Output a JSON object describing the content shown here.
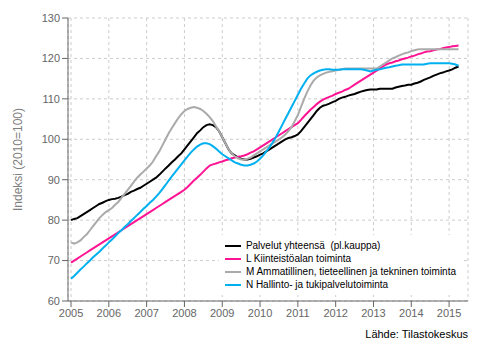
{
  "chart_data": {
    "type": "line",
    "ylabel": "Indeksi (2010=100)",
    "annotations": [
      "Lähde: Tilastokeskus"
    ],
    "grid": true,
    "legend": "lower right",
    "xlim": [
      2004.92,
      2015.5
    ],
    "xticks": [
      2005,
      2006,
      2007,
      2008,
      2009,
      2010,
      2011,
      2012,
      2013,
      2014,
      2015
    ],
    "ylim": [
      60,
      130
    ],
    "yticks": [
      60,
      70,
      80,
      90,
      100,
      110,
      120,
      130
    ],
    "x": [
      2005.0,
      2005.083,
      2005.167,
      2005.25,
      2005.333,
      2005.417,
      2005.5,
      2005.583,
      2005.667,
      2005.75,
      2005.833,
      2005.917,
      2006.0,
      2006.083,
      2006.167,
      2006.25,
      2006.333,
      2006.417,
      2006.5,
      2006.583,
      2006.667,
      2006.75,
      2006.833,
      2006.917,
      2007.0,
      2007.083,
      2007.167,
      2007.25,
      2007.333,
      2007.417,
      2007.5,
      2007.583,
      2007.667,
      2007.75,
      2007.833,
      2007.917,
      2008.0,
      2008.083,
      2008.167,
      2008.25,
      2008.333,
      2008.417,
      2008.5,
      2008.583,
      2008.667,
      2008.75,
      2008.833,
      2008.917,
      2009.0,
      2009.083,
      2009.167,
      2009.25,
      2009.333,
      2009.417,
      2009.5,
      2009.583,
      2009.667,
      2009.75,
      2009.833,
      2009.917,
      2010.0,
      2010.083,
      2010.167,
      2010.25,
      2010.333,
      2010.417,
      2010.5,
      2010.583,
      2010.667,
      2010.75,
      2010.833,
      2010.917,
      2011.0,
      2011.083,
      2011.167,
      2011.25,
      2011.333,
      2011.417,
      2011.5,
      2011.583,
      2011.667,
      2011.75,
      2011.833,
      2011.917,
      2012.0,
      2012.083,
      2012.167,
      2012.25,
      2012.333,
      2012.417,
      2012.5,
      2012.583,
      2012.667,
      2012.75,
      2012.833,
      2012.917,
      2013.0,
      2013.083,
      2013.167,
      2013.25,
      2013.333,
      2013.417,
      2013.5,
      2013.583,
      2013.667,
      2013.75,
      2013.833,
      2013.917,
      2014.0,
      2014.083,
      2014.167,
      2014.25,
      2014.333,
      2014.417,
      2014.5,
      2014.583,
      2014.667,
      2014.75,
      2014.833,
      2014.917,
      2015.0,
      2015.083,
      2015.167,
      2015.25
    ],
    "series": [
      {
        "name": "Palvelut yhteensä  (pl.kauppa)",
        "color": "#000000",
        "values": [
          80.0,
          80.3,
          80.5,
          81.0,
          81.5,
          82.0,
          82.5,
          83.0,
          83.5,
          84.0,
          84.3,
          84.7,
          85.0,
          85.2,
          85.3,
          85.5,
          85.8,
          86.2,
          86.5,
          87.0,
          87.3,
          87.7,
          88.0,
          88.5,
          89.0,
          89.5,
          90.0,
          90.5,
          91.2,
          92.0,
          92.8,
          93.5,
          94.3,
          95.0,
          95.8,
          96.5,
          97.5,
          98.5,
          99.5,
          100.5,
          101.5,
          102.2,
          103.0,
          103.5,
          103.7,
          103.5,
          103.0,
          102.0,
          100.5,
          99.0,
          97.5,
          96.5,
          96.0,
          95.5,
          95.2,
          95.0,
          95.0,
          95.2,
          95.5,
          95.8,
          96.2,
          96.5,
          97.0,
          97.5,
          98.0,
          98.5,
          99.0,
          99.5,
          100.0,
          100.3,
          100.5,
          100.8,
          101.2,
          102.0,
          103.0,
          104.0,
          105.0,
          106.0,
          107.0,
          107.8,
          108.3,
          108.5,
          108.8,
          109.2,
          109.5,
          110.0,
          110.3,
          110.5,
          110.8,
          111.0,
          111.2,
          111.5,
          111.8,
          112.0,
          112.2,
          112.3,
          112.3,
          112.3,
          112.5,
          112.5,
          112.5,
          112.5,
          112.5,
          112.8,
          113.0,
          113.2,
          113.3,
          113.5,
          113.5,
          113.8,
          114.0,
          114.3,
          114.7,
          115.0,
          115.3,
          115.7,
          116.0,
          116.3,
          116.5,
          116.8,
          117.0,
          117.3,
          117.7,
          118.0
        ]
      },
      {
        "name": "L Kiinteistöalan toiminta",
        "color": "#ff1493",
        "values": [
          69.5,
          70.0,
          70.5,
          71.0,
          71.5,
          72.0,
          72.5,
          73.0,
          73.5,
          74.0,
          74.5,
          75.0,
          75.5,
          76.0,
          76.5,
          77.0,
          77.5,
          78.0,
          78.5,
          79.0,
          79.5,
          80.0,
          80.5,
          81.0,
          81.5,
          82.0,
          82.5,
          83.0,
          83.5,
          84.0,
          84.5,
          85.0,
          85.5,
          86.0,
          86.5,
          87.0,
          87.5,
          88.2,
          89.0,
          89.8,
          90.5,
          91.2,
          92.0,
          92.8,
          93.5,
          93.8,
          94.0,
          94.3,
          94.5,
          94.8,
          95.0,
          95.3,
          95.5,
          95.7,
          95.8,
          96.0,
          96.3,
          96.7,
          97.0,
          97.5,
          98.0,
          98.5,
          99.0,
          99.5,
          100.0,
          100.5,
          101.0,
          101.5,
          102.0,
          102.5,
          103.0,
          103.5,
          104.0,
          104.8,
          105.7,
          106.5,
          107.3,
          108.0,
          108.7,
          109.3,
          109.8,
          110.2,
          110.5,
          110.8,
          111.2,
          111.5,
          111.8,
          112.2,
          112.5,
          113.0,
          113.5,
          114.0,
          114.5,
          115.0,
          115.5,
          116.0,
          116.5,
          117.0,
          117.5,
          118.0,
          118.5,
          118.8,
          119.0,
          119.3,
          119.5,
          119.8,
          120.0,
          120.2,
          120.5,
          120.7,
          121.0,
          121.2,
          121.5,
          121.7,
          121.8,
          122.0,
          122.2,
          122.3,
          122.5,
          122.7,
          122.8,
          123.0,
          123.1,
          123.2
        ]
      },
      {
        "name": "M Ammatillinen, tieteellinen ja tekninen toiminta",
        "color": "#aaaaaa",
        "values": [
          74.5,
          74.2,
          74.5,
          75.0,
          75.8,
          76.5,
          77.5,
          78.5,
          79.5,
          80.5,
          81.3,
          82.0,
          82.5,
          83.0,
          83.8,
          84.5,
          85.5,
          86.5,
          87.5,
          88.5,
          89.5,
          90.5,
          91.3,
          92.0,
          92.8,
          93.5,
          94.5,
          95.8,
          97.0,
          98.5,
          100.0,
          101.5,
          102.8,
          104.0,
          105.2,
          106.2,
          107.0,
          107.5,
          107.8,
          108.0,
          107.8,
          107.5,
          107.0,
          106.3,
          105.5,
          104.5,
          103.2,
          102.0,
          100.5,
          99.0,
          97.5,
          96.5,
          95.8,
          95.3,
          95.0,
          95.0,
          95.2,
          95.5,
          96.0,
          96.5,
          97.0,
          97.5,
          98.0,
          98.5,
          99.0,
          99.5,
          100.0,
          100.5,
          101.2,
          102.0,
          103.0,
          104.5,
          106.0,
          108.0,
          110.0,
          111.8,
          113.3,
          114.5,
          115.3,
          115.8,
          116.2,
          116.5,
          116.7,
          116.8,
          117.0,
          117.2,
          117.3,
          117.5,
          117.5,
          117.5,
          117.5,
          117.5,
          117.5,
          117.5,
          117.5,
          117.5,
          117.5,
          117.5,
          118.0,
          118.5,
          119.0,
          119.5,
          120.0,
          120.3,
          120.7,
          121.0,
          121.3,
          121.5,
          121.8,
          122.0,
          122.2,
          122.3,
          122.3,
          122.3,
          122.3,
          122.3,
          122.3,
          122.3,
          122.3,
          122.3,
          122.3,
          122.3,
          122.3,
          122.3
        ]
      },
      {
        "name": "N Hallinto- ja tukipalvelutoiminta",
        "color": "#00b0f0",
        "values": [
          65.5,
          66.2,
          67.0,
          67.8,
          68.5,
          69.3,
          70.0,
          70.8,
          71.5,
          72.2,
          73.0,
          73.7,
          74.5,
          75.2,
          76.0,
          76.8,
          77.5,
          78.3,
          79.0,
          79.8,
          80.5,
          81.3,
          82.0,
          82.8,
          83.5,
          84.3,
          85.0,
          85.8,
          86.7,
          87.7,
          88.7,
          89.8,
          90.8,
          91.8,
          92.8,
          93.8,
          94.8,
          95.8,
          96.7,
          97.5,
          98.2,
          98.7,
          99.0,
          99.0,
          98.8,
          98.3,
          97.7,
          97.0,
          96.3,
          95.8,
          95.3,
          94.8,
          94.3,
          94.0,
          93.7,
          93.5,
          93.5,
          93.7,
          94.0,
          94.5,
          95.2,
          96.0,
          97.0,
          98.0,
          99.2,
          100.5,
          102.0,
          103.5,
          105.0,
          106.5,
          108.0,
          109.5,
          111.0,
          112.5,
          113.8,
          115.0,
          115.8,
          116.3,
          116.7,
          117.0,
          117.2,
          117.3,
          117.3,
          117.2,
          117.2,
          117.2,
          117.3,
          117.3,
          117.3,
          117.3,
          117.3,
          117.3,
          117.3,
          117.2,
          117.0,
          116.8,
          117.0,
          117.2,
          117.3,
          117.5,
          117.7,
          117.8,
          118.0,
          118.2,
          118.3,
          118.5,
          118.5,
          118.5,
          118.5,
          118.5,
          118.5,
          118.5,
          118.5,
          118.7,
          118.8,
          118.8,
          118.8,
          118.8,
          118.8,
          118.8,
          118.8,
          118.7,
          118.5,
          118.2
        ]
      }
    ]
  }
}
